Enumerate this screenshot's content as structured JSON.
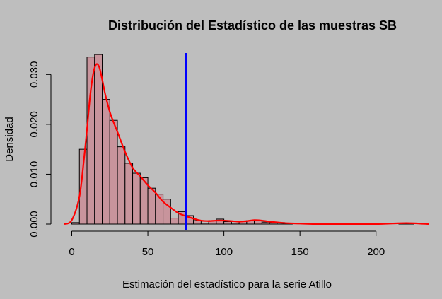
{
  "chart_data": {
    "type": "histogram",
    "title": "Distribución del Estadístico de las muestras SB",
    "xlabel": "Estimación del estadístico para la serie Atillo",
    "ylabel": "Densidad",
    "xlim": [
      -10,
      235
    ],
    "ylim": [
      0,
      0.036
    ],
    "x_ticks": [
      0,
      50,
      100,
      150,
      200
    ],
    "y_ticks": [
      0.0,
      0.01,
      0.02,
      0.03
    ],
    "y_tick_labels": [
      "0.000",
      "0.010",
      "0.020",
      "0.030"
    ],
    "grid": false,
    "bin_width": 5,
    "bins": [
      {
        "start": 0,
        "end": 5,
        "density": 0.0003
      },
      {
        "start": 5,
        "end": 10,
        "density": 0.015
      },
      {
        "start": 10,
        "end": 15,
        "density": 0.0335
      },
      {
        "start": 15,
        "end": 20,
        "density": 0.034
      },
      {
        "start": 20,
        "end": 25,
        "density": 0.025
      },
      {
        "start": 25,
        "end": 30,
        "density": 0.0208
      },
      {
        "start": 30,
        "end": 35,
        "density": 0.0155
      },
      {
        "start": 35,
        "end": 40,
        "density": 0.0122
      },
      {
        "start": 40,
        "end": 45,
        "density": 0.0102
      },
      {
        "start": 45,
        "end": 50,
        "density": 0.0093
      },
      {
        "start": 50,
        "end": 55,
        "density": 0.0072
      },
      {
        "start": 55,
        "end": 60,
        "density": 0.006
      },
      {
        "start": 60,
        "end": 65,
        "density": 0.005
      },
      {
        "start": 65,
        "end": 70,
        "density": 0.0012
      },
      {
        "start": 70,
        "end": 75,
        "density": 0.0025
      },
      {
        "start": 75,
        "end": 80,
        "density": 0.0017
      },
      {
        "start": 80,
        "end": 85,
        "density": 0.0007
      },
      {
        "start": 85,
        "end": 90,
        "density": 0.0002
      },
      {
        "start": 90,
        "end": 95,
        "density": 0.0007
      },
      {
        "start": 95,
        "end": 100,
        "density": 0.001
      },
      {
        "start": 100,
        "end": 105,
        "density": 0.0005
      },
      {
        "start": 105,
        "end": 110,
        "density": 0.0002
      },
      {
        "start": 110,
        "end": 115,
        "density": 0.0005
      },
      {
        "start": 115,
        "end": 120,
        "density": 0.0007
      },
      {
        "start": 120,
        "end": 125,
        "density": 0.0007
      },
      {
        "start": 125,
        "end": 130,
        "density": 0.0004
      },
      {
        "start": 130,
        "end": 135,
        "density": 0.0003
      },
      {
        "start": 135,
        "end": 140,
        "density": 0.0003
      },
      {
        "start": 140,
        "end": 145,
        "density": 0.0001
      },
      {
        "start": 215,
        "end": 220,
        "density": 0.0002
      },
      {
        "start": 220,
        "end": 225,
        "density": 0.0002
      }
    ],
    "density_curve": {
      "color": "#ff0000",
      "x": [
        -5,
        0,
        5,
        8,
        10,
        12,
        14,
        16,
        18,
        20,
        22,
        25,
        28,
        30,
        35,
        40,
        45,
        50,
        55,
        60,
        65,
        70,
        75,
        80,
        85,
        90,
        95,
        100,
        105,
        110,
        115,
        120,
        125,
        130,
        140,
        150,
        160,
        180,
        200,
        220,
        235
      ],
      "y": [
        0.0,
        0.0008,
        0.0055,
        0.013,
        0.019,
        0.0255,
        0.03,
        0.032,
        0.0315,
        0.029,
        0.026,
        0.0225,
        0.02,
        0.0185,
        0.0145,
        0.0113,
        0.0096,
        0.0078,
        0.0063,
        0.0045,
        0.0033,
        0.0022,
        0.0016,
        0.0011,
        0.0007,
        0.0006,
        0.0007,
        0.0007,
        0.0006,
        0.0005,
        0.0006,
        0.0008,
        0.0007,
        0.0005,
        0.0002,
        0.0001,
        0.0,
        0.0,
        0.0,
        0.0002,
        0.0
      ]
    },
    "vline": {
      "x": 75,
      "color": "#0000ff"
    },
    "bar_fill": "#c8949c",
    "bar_stroke": "#000000",
    "background": "#bebebe"
  }
}
